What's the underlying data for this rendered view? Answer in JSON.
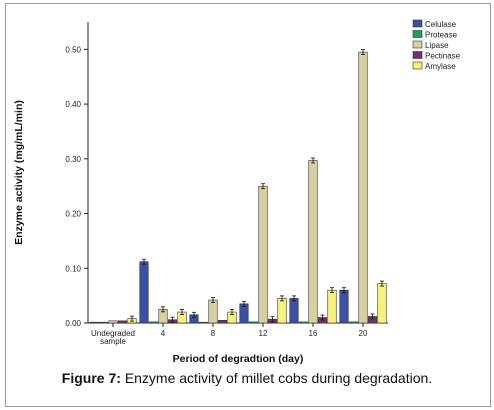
{
  "caption": {
    "label": "Figure 7:",
    "text": "Enzyme activity of millet cobs during degradation."
  },
  "chart_data": {
    "type": "bar",
    "xlabel": "Period of degradtion (day)",
    "ylabel": "Enzyme activity (mg/mL/min)",
    "ylim": [
      0,
      0.55
    ],
    "yticks": [
      "0.00",
      "0.10",
      "0.20",
      "0.30",
      "0.40",
      "0.50"
    ],
    "ytick_values": [
      0,
      0.1,
      0.2,
      0.3,
      0.4,
      0.5
    ],
    "categories": [
      "Undegraded sample",
      "4",
      "8",
      "12",
      "16",
      "20"
    ],
    "category_lines": [
      [
        "Undegraded",
        "sample"
      ],
      [
        "4"
      ],
      [
        "8"
      ],
      [
        "12"
      ],
      [
        "16"
      ],
      [
        "20"
      ]
    ],
    "legend_position": "top-right",
    "grid": false,
    "error_bars": true,
    "series": [
      {
        "name": "Celulase",
        "color": "#3b4fa5",
        "values": [
          0.001,
          0.112,
          0.015,
          0.035,
          0.045,
          0.06
        ]
      },
      {
        "name": "Protease",
        "color": "#1e9e57",
        "values": [
          0.001,
          0.002,
          0.001,
          0.002,
          0.002,
          0.002
        ]
      },
      {
        "name": "Lipase",
        "color": "#d6d1a1",
        "values": [
          0.004,
          0.025,
          0.042,
          0.25,
          0.297,
          0.495
        ]
      },
      {
        "name": "Pectinase",
        "color": "#7a2e6f",
        "values": [
          0.004,
          0.006,
          0.005,
          0.007,
          0.01,
          0.012
        ]
      },
      {
        "name": "Amylase",
        "color": "#f8f27a",
        "values": [
          0.008,
          0.02,
          0.02,
          0.045,
          0.06,
          0.072
        ]
      }
    ]
  }
}
